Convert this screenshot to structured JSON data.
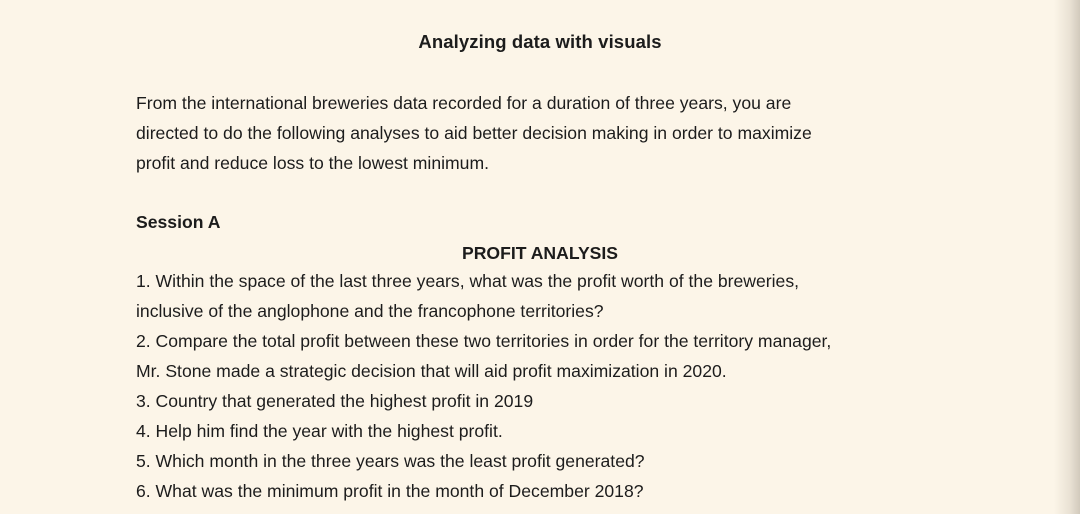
{
  "document": {
    "title": "Analyzing data with visuals",
    "intro_lines": [
      "From the international breweries data recorded for a duration of three years, you are",
      "directed to do the following analyses to aid better decision making in order to maximize",
      "profit and reduce loss to the lowest minimum."
    ],
    "session_label": "Session A",
    "section_heading": "PROFIT ANALYSIS",
    "question_lines": [
      "1. Within the space of the last three years, what was the profit worth of the breweries,",
      "inclusive of the anglophone and the francophone territories?",
      "2. Compare the total profit between these two territories in order for the territory manager,",
      "Mr. Stone made a strategic decision that will aid profit maximization in 2020.",
      "3. Country that generated the highest profit in 2019",
      "4. Help him find the year with the highest profit.",
      "5. Which month in the three years was the least profit generated?",
      "6. What was the minimum profit in the month of December 2018?"
    ]
  },
  "colors": {
    "paper": "#fcf5e8",
    "text": "#1c1c1c"
  }
}
